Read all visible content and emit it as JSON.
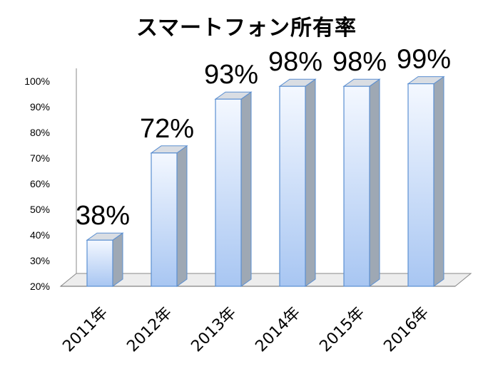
{
  "chart_data": {
    "type": "bar",
    "title": "スマートフォン所有率",
    "categories": [
      "2011年",
      "2012年",
      "2013年",
      "2014年",
      "2015年",
      "2016年"
    ],
    "values": [
      38,
      72,
      93,
      98,
      98,
      99
    ],
    "data_labels": [
      "38%",
      "72%",
      "93%",
      "98%",
      "98%",
      "99%"
    ],
    "yticks": [
      "20%",
      "30%",
      "40%",
      "50%",
      "60%",
      "70%",
      "80%",
      "90%",
      "100%"
    ],
    "ylim": [
      20,
      100
    ],
    "grid": false,
    "legend": "none",
    "bar_color_top": "#f4f8ff",
    "bar_color_bottom": "#a8c6f2",
    "bar_edge": "#5b8fd1",
    "bar_side": "#9ea8b4",
    "bar_top": "#d9dde3"
  }
}
